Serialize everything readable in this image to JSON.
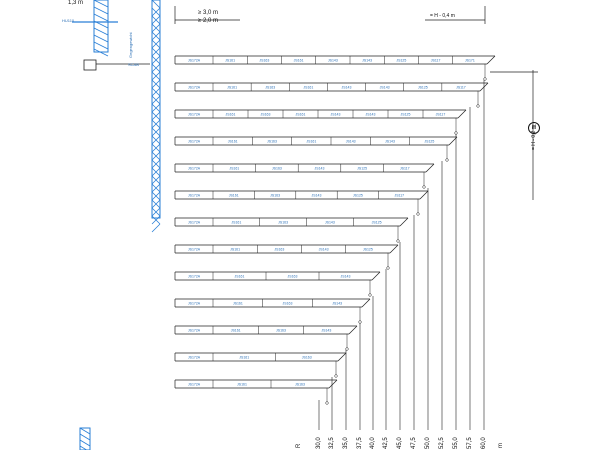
{
  "dims": {
    "top_left": "1,3 m",
    "clear_a": "≥ 3,0 m",
    "clear_b": "≥ 2,0 m",
    "hook_top": "= H - 0,4 m",
    "hook_side": "= H - 0,2 m",
    "h_label": "H"
  },
  "mast_labels": {
    "top": "HU110",
    "side": "Gegengewicht",
    "base": "SCAB"
  },
  "radius_header": "R",
  "radius_unit": "m",
  "radii": [
    "30,0",
    "32,5",
    "35,0",
    "37,5",
    "40,0",
    "42,5",
    "45,0",
    "47,5",
    "50,0",
    "52,5",
    "55,0",
    "57,5",
    "60,0"
  ],
  "jib_rows": [
    {
      "segments": [
        "JS172A",
        "JS161",
        "JS163",
        "JS161",
        "JS143",
        "JS143",
        "JS125",
        "JS117",
        "JS171"
      ]
    },
    {
      "segments": [
        "JS172A",
        "JS161",
        "JS163",
        "JS161",
        "JS143",
        "JS143",
        "JS125",
        "JS117"
      ]
    },
    {
      "segments": [
        "JS172A",
        "JS161",
        "JS163",
        "JS161",
        "JS143",
        "JS143",
        "JS125",
        "JS117"
      ]
    },
    {
      "segments": [
        "JS172A",
        "JS161",
        "JS163",
        "JS161",
        "JS143",
        "JS143",
        "JS125"
      ]
    },
    {
      "segments": [
        "JS172A",
        "JS161",
        "JS163",
        "JS143",
        "JS125",
        "JS117"
      ]
    },
    {
      "segments": [
        "JS172A",
        "JS161",
        "JS163",
        "JS143",
        "JS125",
        "JS117"
      ]
    },
    {
      "segments": [
        "JS172A",
        "JS161",
        "JS163",
        "JS143",
        "JS125"
      ]
    },
    {
      "segments": [
        "JS172A",
        "JS161",
        "JS163",
        "JS143",
        "JS125"
      ]
    },
    {
      "segments": [
        "JS172A",
        "JS161",
        "JS163",
        "JS143"
      ]
    },
    {
      "segments": [
        "JS172A",
        "JS161",
        "JS163",
        "JS143"
      ]
    },
    {
      "segments": [
        "JS172A",
        "JS161",
        "JS163",
        "JS143"
      ]
    },
    {
      "segments": [
        "JS172A",
        "JS161",
        "JS163"
      ]
    },
    {
      "segments": [
        "JS172A",
        "JS161",
        "JS163"
      ]
    }
  ],
  "colors": {
    "mast": "#2a7fd6",
    "line": "#222222"
  }
}
